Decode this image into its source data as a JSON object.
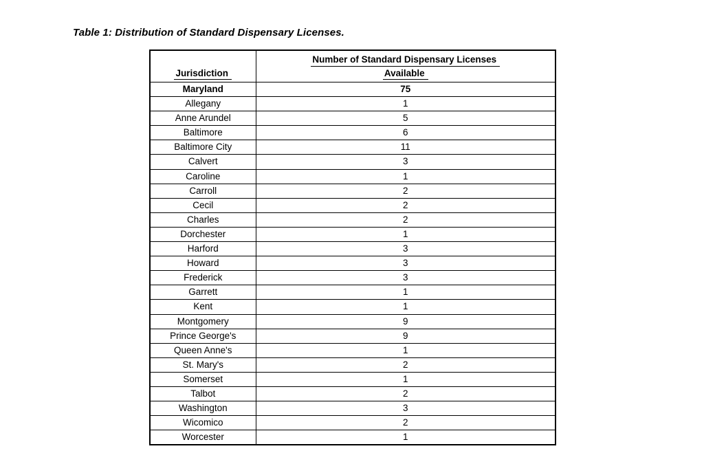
{
  "page": {
    "title": "Table 1: Distribution of Standard Dispensary Licenses."
  },
  "table": {
    "header": {
      "jurisdiction": "Jurisdiction",
      "licenses_line1": "Number of Standard Dispensary Licenses",
      "licenses_line2": "Available"
    },
    "rows": [
      {
        "jurisdiction": "Maryland",
        "licenses": "75",
        "bold": true
      },
      {
        "jurisdiction": "Allegany",
        "licenses": "1",
        "bold": false
      },
      {
        "jurisdiction": "Anne Arundel",
        "licenses": "5",
        "bold": false
      },
      {
        "jurisdiction": "Baltimore",
        "licenses": "6",
        "bold": false
      },
      {
        "jurisdiction": "Baltimore City",
        "licenses": "11",
        "bold": false
      },
      {
        "jurisdiction": "Calvert",
        "licenses": "3",
        "bold": false
      },
      {
        "jurisdiction": "Caroline",
        "licenses": "1",
        "bold": false
      },
      {
        "jurisdiction": "Carroll",
        "licenses": "2",
        "bold": false
      },
      {
        "jurisdiction": "Cecil",
        "licenses": "2",
        "bold": false
      },
      {
        "jurisdiction": "Charles",
        "licenses": "2",
        "bold": false
      },
      {
        "jurisdiction": "Dorchester",
        "licenses": "1",
        "bold": false
      },
      {
        "jurisdiction": "Harford",
        "licenses": "3",
        "bold": false
      },
      {
        "jurisdiction": "Howard",
        "licenses": "3",
        "bold": false
      },
      {
        "jurisdiction": "Frederick",
        "licenses": "3",
        "bold": false
      },
      {
        "jurisdiction": "Garrett",
        "licenses": "1",
        "bold": false
      },
      {
        "jurisdiction": "Kent",
        "licenses": "1",
        "bold": false
      },
      {
        "jurisdiction": "Montgomery",
        "licenses": "9",
        "bold": false
      },
      {
        "jurisdiction": "Prince George's",
        "licenses": "9",
        "bold": false
      },
      {
        "jurisdiction": "Queen Anne's",
        "licenses": "1",
        "bold": false
      },
      {
        "jurisdiction": "St. Mary's",
        "licenses": "2",
        "bold": false
      },
      {
        "jurisdiction": "Somerset",
        "licenses": "1",
        "bold": false
      },
      {
        "jurisdiction": "Talbot",
        "licenses": "2",
        "bold": false
      },
      {
        "jurisdiction": "Washington",
        "licenses": "3",
        "bold": false
      },
      {
        "jurisdiction": "Wicomico",
        "licenses": "2",
        "bold": false
      },
      {
        "jurisdiction": "Worcester",
        "licenses": "1",
        "bold": false
      }
    ]
  },
  "chart_data": {
    "type": "table",
    "title": "Table 1: Distribution of Standard Dispensary Licenses.",
    "columns": [
      "Jurisdiction",
      "Number of Standard Dispensary Licenses Available"
    ],
    "categories": [
      "Maryland",
      "Allegany",
      "Anne Arundel",
      "Baltimore",
      "Baltimore City",
      "Calvert",
      "Caroline",
      "Carroll",
      "Cecil",
      "Charles",
      "Dorchester",
      "Harford",
      "Howard",
      "Frederick",
      "Garrett",
      "Kent",
      "Montgomery",
      "Prince George's",
      "Queen Anne's",
      "St. Mary's",
      "Somerset",
      "Talbot",
      "Washington",
      "Wicomico",
      "Worcester"
    ],
    "values": [
      75,
      1,
      5,
      6,
      11,
      3,
      1,
      2,
      2,
      2,
      1,
      3,
      3,
      3,
      1,
      1,
      9,
      9,
      1,
      2,
      1,
      2,
      3,
      2,
      1
    ]
  }
}
